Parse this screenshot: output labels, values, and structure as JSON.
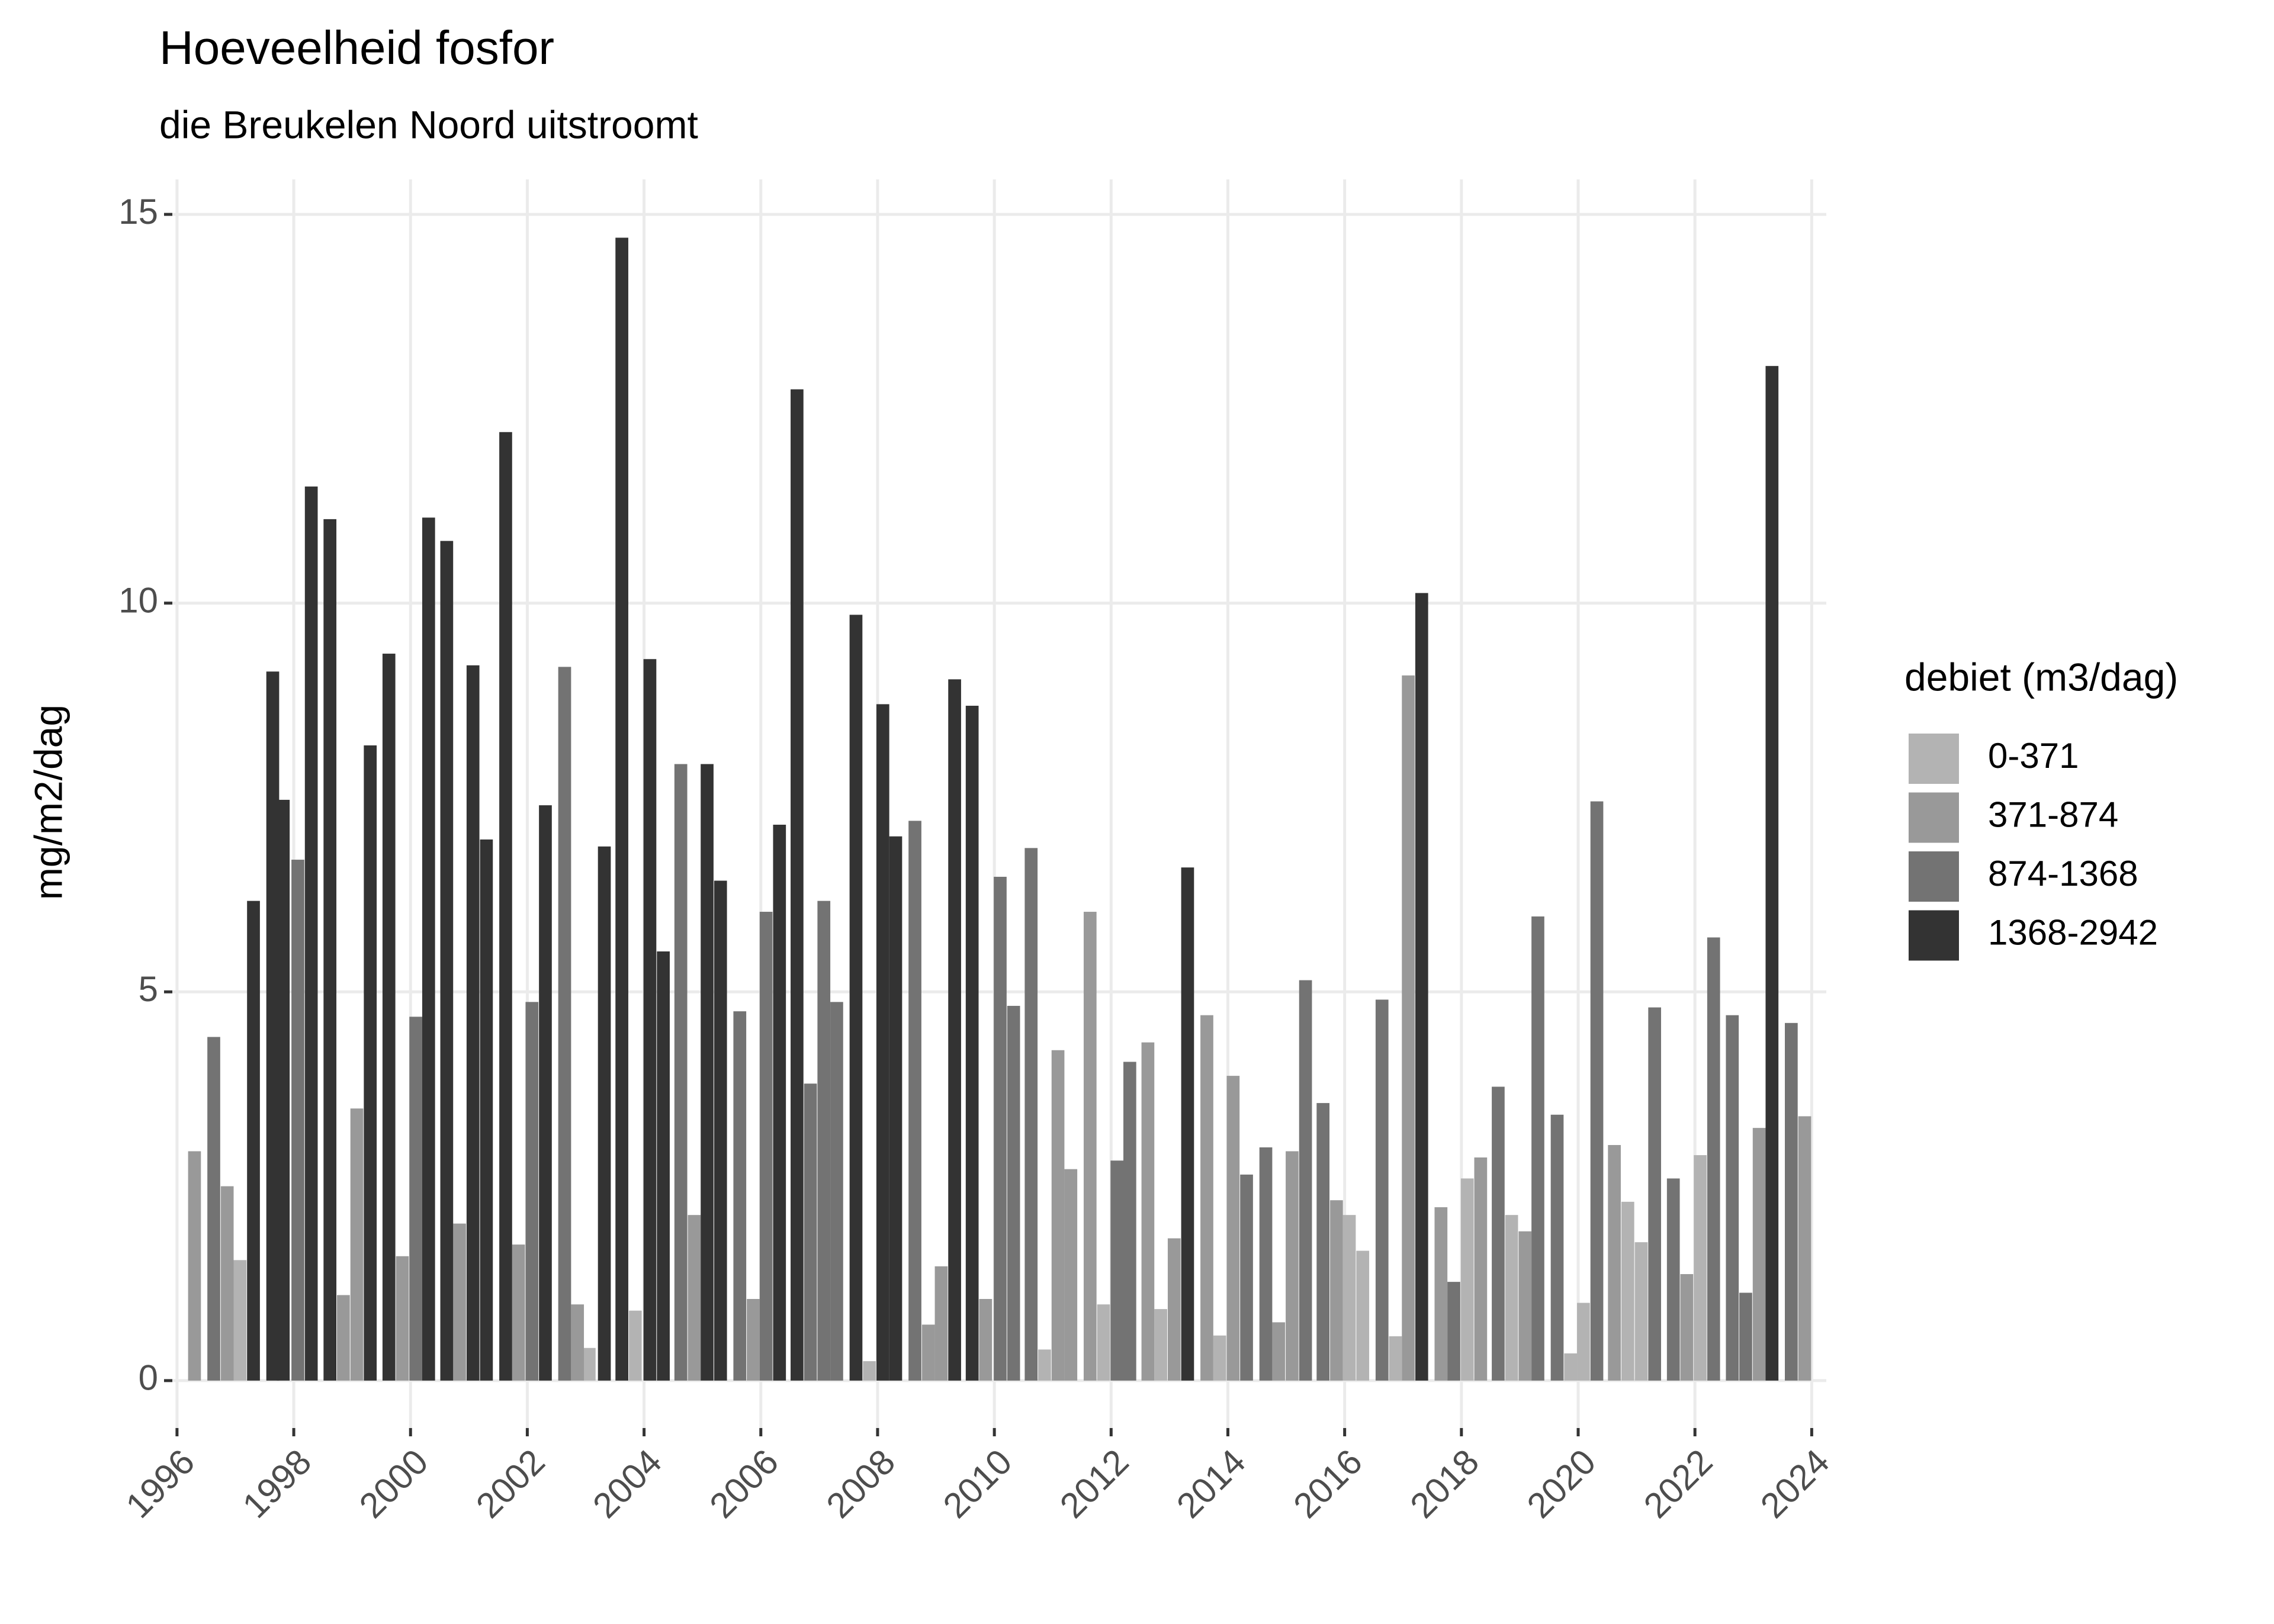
{
  "chart_data": {
    "type": "bar",
    "title": "Hoeveelheid fosfor",
    "subtitle": "die Breukelen Noord uitstroomt",
    "y_label": "mg/m2/dag",
    "legend_title": "debiet (m3/dag)",
    "legend": "right",
    "grid": true,
    "xlim": [
      1995.92,
      2024.25
    ],
    "xticks": [
      1996,
      1998,
      2000,
      2002,
      2004,
      2006,
      2008,
      2010,
      2012,
      2014,
      2016,
      2018,
      2020,
      2022,
      2024
    ],
    "ylim": [
      -0.61,
      15.45
    ],
    "yticks": [
      0,
      5,
      10,
      15
    ],
    "series": [
      {
        "name": "0-371",
        "color": "#b3b3b3",
        "x": [
          1997.08,
          2003.06,
          2003.85,
          2007.86,
          2010.86,
          2011.87,
          2012.85,
          2013.86,
          2016.08,
          2016.31,
          2016.87,
          2018.1,
          2018.86,
          2019.87,
          2020.09,
          2020.85,
          2021.08,
          2022.09
        ],
        "values": [
          1.55,
          0.42,
          0.9,
          0.25,
          0.4,
          0.98,
          0.92,
          0.58,
          2.13,
          1.67,
          0.57,
          2.6,
          2.13,
          0.35,
          1.0,
          2.3,
          1.78,
          2.9
        ]
      },
      {
        "name": "371-874",
        "color": "#999999",
        "x": [
          1996.3,
          1996.86,
          1998.85,
          1999.08,
          1999.86,
          2000.84,
          2001.85,
          2002.86,
          2004.86,
          2005.87,
          2008.87,
          2009.09,
          2009.85,
          2011.09,
          2011.31,
          2011.64,
          2012.63,
          2013.08,
          2013.64,
          2014.09,
          2014.87,
          2015.1,
          2015.86,
          2017.09,
          2017.65,
          2018.33,
          2019.09,
          2020.62,
          2021.86,
          2023.1,
          2023.88
        ],
        "values": [
          2.95,
          2.5,
          1.1,
          3.5,
          1.6,
          2.02,
          1.75,
          0.98,
          2.13,
          1.05,
          0.72,
          1.47,
          1.05,
          4.25,
          2.72,
          6.03,
          4.35,
          1.83,
          4.7,
          3.92,
          0.75,
          2.95,
          2.32,
          9.07,
          2.23,
          2.87,
          1.92,
          3.03,
          1.37,
          3.25,
          3.4
        ]
      },
      {
        "name": "874-1368",
        "color": "#737373",
        "x": [
          1996.63,
          1998.07,
          2000.09,
          2002.08,
          2002.64,
          2004.63,
          2005.64,
          2006.09,
          2006.85,
          2007.08,
          2007.3,
          2008.64,
          2010.1,
          2010.33,
          2010.63,
          2012.1,
          2012.32,
          2014.32,
          2014.65,
          2015.33,
          2015.63,
          2016.64,
          2017.87,
          2018.63,
          2019.31,
          2019.64,
          2020.32,
          2021.31,
          2021.63,
          2022.32,
          2022.64,
          2022.87,
          2023.65
        ],
        "values": [
          4.42,
          6.7,
          4.68,
          4.87,
          9.18,
          7.93,
          4.75,
          6.03,
          3.82,
          6.17,
          4.87,
          7.2,
          6.48,
          4.82,
          6.85,
          2.83,
          4.1,
          2.65,
          3.0,
          5.15,
          3.57,
          4.9,
          1.27,
          3.78,
          5.97,
          3.42,
          7.45,
          4.8,
          2.6,
          5.7,
          4.7,
          1.13,
          4.6
        ]
      },
      {
        "name": "1368-2942",
        "color": "#333333",
        "x": [
          1997.31,
          1997.64,
          1997.82,
          1998.3,
          1998.62,
          1999.31,
          1999.63,
          2000.31,
          2000.62,
          2001.07,
          2001.3,
          2001.63,
          2002.31,
          2003.32,
          2003.62,
          2004.1,
          2004.33,
          2005.08,
          2005.31,
          2006.32,
          2006.62,
          2007.63,
          2008.09,
          2008.31,
          2009.32,
          2009.62,
          2013.31,
          2017.32,
          2023.32
        ],
        "values": [
          6.17,
          9.12,
          7.47,
          11.5,
          11.08,
          8.17,
          9.35,
          11.1,
          10.8,
          9.2,
          6.96,
          12.2,
          7.4,
          6.87,
          14.7,
          9.28,
          5.52,
          7.93,
          6.43,
          7.15,
          12.75,
          9.85,
          8.7,
          7.0,
          9.02,
          8.68,
          6.6,
          10.13,
          13.05
        ]
      }
    ]
  }
}
